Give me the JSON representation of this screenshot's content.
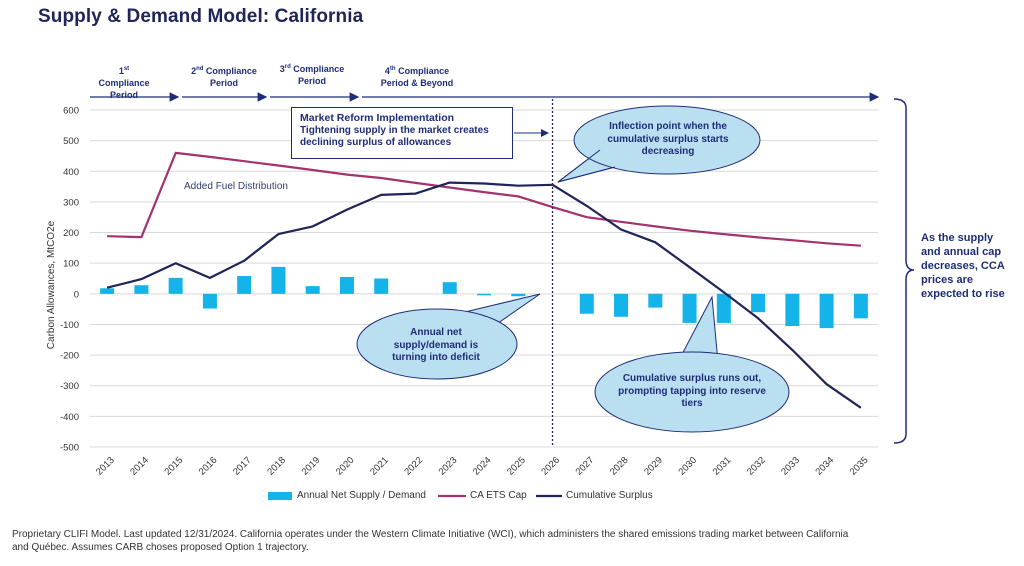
{
  "title": "Supply & Demand Model: California",
  "compliance_periods": [
    {
      "ord": "1",
      "sup": "st",
      "line1": " Compliance",
      "line2": "Period"
    },
    {
      "ord": "2",
      "sup": "nd",
      "line1": " Compliance",
      "line2": "Period"
    },
    {
      "ord": "3",
      "sup": "rd",
      "line1": " Compliance",
      "line2": "Period"
    },
    {
      "ord": "4",
      "sup": "th",
      "line1": " Compliance",
      "line2": "Period & Beyond"
    }
  ],
  "reform_box": {
    "heading": "Market Reform Implementation",
    "body": "Tightening supply in the market creates declining surplus of allowances"
  },
  "annotations": {
    "fuel": "Added Fuel Distribution",
    "inflection": "Inflection point when the cumulative surplus starts decreasing",
    "deficit": "Annual net supply/demand is turning into deficit",
    "runs_out": "Cumulative surplus runs out, prompting tapping into reserve tiers"
  },
  "side_note": "As the supply and annual cap decreases, CCA prices are expected to rise",
  "footnote": "Proprietary CLIFI Model. Last updated 12/31/2024. California operates under the Western Climate Initiative (WCI), which administers the shared emissions trading market between California and Québec. Assumes CARB choses proposed Option 1 trajectory.",
  "colors": {
    "bars": "#14b4ea",
    "cap": "#a3336e",
    "surplus": "#1f2459",
    "bubble_fill": "#b9dff0",
    "bubble_stroke": "#1f2d78",
    "text_dark": "#1f2d78"
  },
  "chart_data": {
    "type": "bar",
    "x": [
      "2013",
      "2014",
      "2015",
      "2016",
      "2017",
      "2018",
      "2019",
      "2020",
      "2021",
      "2022",
      "2023",
      "2024",
      "2025",
      "2026",
      "2027",
      "2028",
      "2029",
      "2030",
      "2031",
      "2032",
      "2033",
      "2034",
      "2035"
    ],
    "ylabel": "Carbon Allowances, MtCO2e",
    "ylim": [
      -500,
      600
    ],
    "yticks": [
      -500,
      -400,
      -300,
      -200,
      -100,
      0,
      100,
      200,
      300,
      400,
      500,
      600
    ],
    "grid": true,
    "legend_position": "bottom",
    "series": [
      {
        "name": "Annual Net Supply / Demand",
        "type": "bar",
        "values": [
          18,
          28,
          52,
          -48,
          58,
          88,
          25,
          55,
          50,
          null,
          38,
          -5,
          -8,
          null,
          -65,
          -75,
          -45,
          -95,
          -95,
          -60,
          -105,
          -112,
          -80
        ]
      },
      {
        "name": "CA ETS Cap",
        "type": "line",
        "values": [
          188,
          185,
          460,
          447,
          433,
          419,
          404,
          389,
          378,
          362,
          347,
          332,
          318,
          283,
          250,
          235,
          220,
          206,
          195,
          184,
          175,
          165,
          157
        ]
      },
      {
        "name": "Cumulative Surplus",
        "type": "line",
        "values": [
          20,
          48,
          100,
          52,
          108,
          195,
          220,
          275,
          323,
          327,
          363,
          360,
          353,
          356,
          287,
          210,
          168,
          87,
          5,
          -80,
          -183,
          -295,
          -372
        ]
      }
    ],
    "vertical_marker": "2026"
  }
}
